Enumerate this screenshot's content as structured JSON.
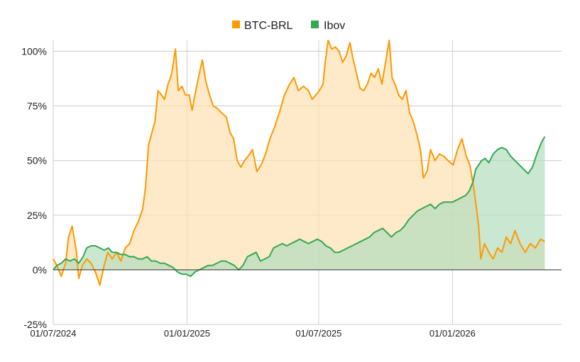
{
  "chart_data": {
    "type": "area",
    "x_axis": {
      "type": "date",
      "range": [
        "2024-07-01",
        "2026-05-31"
      ],
      "tick_labels": [
        "01/07/2024",
        "01/01/2025",
        "01/07/2025",
        "01/01/2026"
      ],
      "tick_dates": [
        "2024-07-01",
        "2025-01-01",
        "2025-07-01",
        "2026-01-01"
      ]
    },
    "y_axis": {
      "unit": "percent",
      "ylim": [
        -25,
        105
      ],
      "ticks": [
        -25,
        0,
        25,
        50,
        75,
        100
      ],
      "tick_labels": [
        "-25%",
        "0%",
        "25%",
        "50%",
        "75%",
        "100%"
      ]
    },
    "grid": true,
    "legend": "top-center",
    "series": [
      {
        "name": "BTC-BRL",
        "color": "#ff9900",
        "fill": "#fddfb0",
        "points": [
          [
            "2024-07-01",
            5
          ],
          [
            "2024-07-06",
            2
          ],
          [
            "2024-07-12",
            -3
          ],
          [
            "2024-07-18",
            3
          ],
          [
            "2024-07-22",
            15
          ],
          [
            "2024-07-27",
            20
          ],
          [
            "2024-08-02",
            8
          ],
          [
            "2024-08-05",
            -4
          ],
          [
            "2024-08-10",
            2
          ],
          [
            "2024-08-16",
            5
          ],
          [
            "2024-08-22",
            3
          ],
          [
            "2024-08-28",
            -1
          ],
          [
            "2024-09-03",
            -7
          ],
          [
            "2024-09-09",
            2
          ],
          [
            "2024-09-14",
            8
          ],
          [
            "2024-09-20",
            5
          ],
          [
            "2024-09-26",
            8
          ],
          [
            "2024-10-02",
            4
          ],
          [
            "2024-10-08",
            10
          ],
          [
            "2024-10-14",
            12
          ],
          [
            "2024-10-20",
            18
          ],
          [
            "2024-10-26",
            22
          ],
          [
            "2024-11-01",
            28
          ],
          [
            "2024-11-05",
            38
          ],
          [
            "2024-11-09",
            57
          ],
          [
            "2024-11-13",
            62
          ],
          [
            "2024-11-18",
            68
          ],
          [
            "2024-11-22",
            82
          ],
          [
            "2024-11-27",
            80
          ],
          [
            "2024-12-01",
            78
          ],
          [
            "2024-12-06",
            85
          ],
          [
            "2024-12-11",
            90
          ],
          [
            "2024-12-16",
            101
          ],
          [
            "2024-12-20",
            82
          ],
          [
            "2024-12-25",
            84
          ],
          [
            "2024-12-30",
            80
          ],
          [
            "2025-01-04",
            80
          ],
          [
            "2025-01-08",
            73
          ],
          [
            "2025-01-13",
            82
          ],
          [
            "2025-01-18",
            90
          ],
          [
            "2025-01-22",
            96
          ],
          [
            "2025-01-27",
            86
          ],
          [
            "2025-02-01",
            80
          ],
          [
            "2025-02-06",
            75
          ],
          [
            "2025-02-11",
            74
          ],
          [
            "2025-02-17",
            72
          ],
          [
            "2025-02-24",
            70
          ],
          [
            "2025-03-01",
            63
          ],
          [
            "2025-03-06",
            60
          ],
          [
            "2025-03-11",
            50
          ],
          [
            "2025-03-16",
            47
          ],
          [
            "2025-03-21",
            50
          ],
          [
            "2025-03-26",
            52
          ],
          [
            "2025-04-01",
            55
          ],
          [
            "2025-04-07",
            45
          ],
          [
            "2025-04-13",
            48
          ],
          [
            "2025-04-19",
            53
          ],
          [
            "2025-04-25",
            60
          ],
          [
            "2025-05-01",
            65
          ],
          [
            "2025-05-08",
            72
          ],
          [
            "2025-05-15",
            80
          ],
          [
            "2025-05-22",
            85
          ],
          [
            "2025-05-28",
            88
          ],
          [
            "2025-06-03",
            82
          ],
          [
            "2025-06-10",
            84
          ],
          [
            "2025-06-17",
            82
          ],
          [
            "2025-06-22",
            78
          ],
          [
            "2025-06-27",
            80
          ],
          [
            "2025-07-02",
            82
          ],
          [
            "2025-07-07",
            85
          ],
          [
            "2025-07-10",
            95
          ],
          [
            "2025-07-14",
            105
          ],
          [
            "2025-07-19",
            101
          ],
          [
            "2025-07-24",
            102
          ],
          [
            "2025-07-29",
            100
          ],
          [
            "2025-08-03",
            95
          ],
          [
            "2025-08-08",
            98
          ],
          [
            "2025-08-13",
            104
          ],
          [
            "2025-08-17",
            97
          ],
          [
            "2025-08-22",
            90
          ],
          [
            "2025-08-27",
            83
          ],
          [
            "2025-09-01",
            82
          ],
          [
            "2025-09-06",
            85
          ],
          [
            "2025-09-11",
            90
          ],
          [
            "2025-09-16",
            88
          ],
          [
            "2025-09-21",
            92
          ],
          [
            "2025-09-26",
            85
          ],
          [
            "2025-10-01",
            95
          ],
          [
            "2025-10-06",
            105
          ],
          [
            "2025-10-10",
            88
          ],
          [
            "2025-10-14",
            85
          ],
          [
            "2025-10-19",
            80
          ],
          [
            "2025-10-24",
            78
          ],
          [
            "2025-10-29",
            82
          ],
          [
            "2025-11-03",
            72
          ],
          [
            "2025-11-08",
            68
          ],
          [
            "2025-11-13",
            62
          ],
          [
            "2025-11-18",
            55
          ],
          [
            "2025-11-22",
            42
          ],
          [
            "2025-11-27",
            45
          ],
          [
            "2025-12-02",
            55
          ],
          [
            "2025-12-08",
            50
          ],
          [
            "2025-12-14",
            53
          ],
          [
            "2025-12-20",
            52
          ],
          [
            "2025-12-26",
            50
          ],
          [
            "2026-01-02",
            48
          ],
          [
            "2026-01-08",
            55
          ],
          [
            "2026-01-14",
            60
          ],
          [
            "2026-01-20",
            52
          ],
          [
            "2026-01-25",
            48
          ],
          [
            "2026-01-30",
            38
          ],
          [
            "2026-02-03",
            28
          ],
          [
            "2026-02-06",
            20
          ],
          [
            "2026-02-09",
            5
          ],
          [
            "2026-02-14",
            12
          ],
          [
            "2026-02-20",
            8
          ],
          [
            "2026-02-26",
            5
          ],
          [
            "2026-03-04",
            10
          ],
          [
            "2026-03-10",
            8
          ],
          [
            "2026-03-16",
            15
          ],
          [
            "2026-03-22",
            12
          ],
          [
            "2026-03-28",
            18
          ],
          [
            "2026-04-04",
            12
          ],
          [
            "2026-04-11",
            8
          ],
          [
            "2026-04-18",
            12
          ],
          [
            "2026-04-25",
            10
          ],
          [
            "2026-05-02",
            14
          ],
          [
            "2026-05-08",
            13
          ]
        ]
      },
      {
        "name": "Ibov",
        "color": "#34a853",
        "fill": "#b4ddbe",
        "points": [
          [
            "2024-07-01",
            0
          ],
          [
            "2024-07-06",
            2
          ],
          [
            "2024-07-12",
            3
          ],
          [
            "2024-07-18",
            5
          ],
          [
            "2024-07-24",
            4
          ],
          [
            "2024-07-30",
            5
          ],
          [
            "2024-08-05",
            3
          ],
          [
            "2024-08-11",
            6
          ],
          [
            "2024-08-16",
            10
          ],
          [
            "2024-08-22",
            11
          ],
          [
            "2024-08-28",
            11
          ],
          [
            "2024-09-03",
            10
          ],
          [
            "2024-09-09",
            9
          ],
          [
            "2024-09-15",
            10
          ],
          [
            "2024-09-20",
            8
          ],
          [
            "2024-09-26",
            8
          ],
          [
            "2024-10-02",
            7
          ],
          [
            "2024-10-08",
            7
          ],
          [
            "2024-10-14",
            6
          ],
          [
            "2024-10-20",
            6
          ],
          [
            "2024-10-26",
            5
          ],
          [
            "2024-11-01",
            5
          ],
          [
            "2024-11-07",
            6
          ],
          [
            "2024-11-13",
            4
          ],
          [
            "2024-11-19",
            4
          ],
          [
            "2024-11-25",
            3
          ],
          [
            "2024-12-01",
            3
          ],
          [
            "2024-12-07",
            2
          ],
          [
            "2024-12-13",
            1
          ],
          [
            "2024-12-19",
            -1
          ],
          [
            "2024-12-25",
            -2
          ],
          [
            "2024-12-31",
            -2
          ],
          [
            "2025-01-06",
            -3
          ],
          [
            "2025-01-12",
            -1
          ],
          [
            "2025-01-18",
            0
          ],
          [
            "2025-01-24",
            1
          ],
          [
            "2025-01-30",
            2
          ],
          [
            "2025-02-05",
            2
          ],
          [
            "2025-02-11",
            3
          ],
          [
            "2025-02-17",
            4
          ],
          [
            "2025-02-23",
            4
          ],
          [
            "2025-03-01",
            3
          ],
          [
            "2025-03-07",
            2
          ],
          [
            "2025-03-13",
            0
          ],
          [
            "2025-03-19",
            2
          ],
          [
            "2025-03-25",
            6
          ],
          [
            "2025-03-31",
            7
          ],
          [
            "2025-04-06",
            8
          ],
          [
            "2025-04-12",
            4
          ],
          [
            "2025-04-18",
            5
          ],
          [
            "2025-04-24",
            6
          ],
          [
            "2025-04-30",
            10
          ],
          [
            "2025-05-06",
            11
          ],
          [
            "2025-05-12",
            12
          ],
          [
            "2025-05-18",
            11
          ],
          [
            "2025-05-24",
            12
          ],
          [
            "2025-05-30",
            13
          ],
          [
            "2025-06-05",
            14
          ],
          [
            "2025-06-11",
            13
          ],
          [
            "2025-06-17",
            12
          ],
          [
            "2025-06-23",
            13
          ],
          [
            "2025-06-29",
            14
          ],
          [
            "2025-07-05",
            13
          ],
          [
            "2025-07-11",
            11
          ],
          [
            "2025-07-17",
            10
          ],
          [
            "2025-07-23",
            8
          ],
          [
            "2025-07-29",
            8
          ],
          [
            "2025-08-04",
            9
          ],
          [
            "2025-08-10",
            10
          ],
          [
            "2025-08-16",
            11
          ],
          [
            "2025-08-22",
            12
          ],
          [
            "2025-08-28",
            13
          ],
          [
            "2025-09-03",
            14
          ],
          [
            "2025-09-09",
            15
          ],
          [
            "2025-09-15",
            17
          ],
          [
            "2025-09-21",
            18
          ],
          [
            "2025-09-27",
            19
          ],
          [
            "2025-10-03",
            17
          ],
          [
            "2025-10-09",
            15
          ],
          [
            "2025-10-15",
            17
          ],
          [
            "2025-10-21",
            18
          ],
          [
            "2025-10-27",
            20
          ],
          [
            "2025-11-02",
            23
          ],
          [
            "2025-11-08",
            25
          ],
          [
            "2025-11-14",
            27
          ],
          [
            "2025-11-20",
            28
          ],
          [
            "2025-11-26",
            29
          ],
          [
            "2025-12-02",
            30
          ],
          [
            "2025-12-08",
            28
          ],
          [
            "2025-12-14",
            30
          ],
          [
            "2025-12-20",
            31
          ],
          [
            "2025-12-26",
            31
          ],
          [
            "2026-01-01",
            31
          ],
          [
            "2026-01-07",
            32
          ],
          [
            "2026-01-13",
            33
          ],
          [
            "2026-01-19",
            34
          ],
          [
            "2026-01-24",
            36
          ],
          [
            "2026-01-29",
            40
          ],
          [
            "2026-02-02",
            46
          ],
          [
            "2026-02-06",
            48
          ],
          [
            "2026-02-10",
            50
          ],
          [
            "2026-02-15",
            51
          ],
          [
            "2026-02-20",
            49
          ],
          [
            "2026-02-26",
            53
          ],
          [
            "2026-03-04",
            55
          ],
          [
            "2026-03-10",
            56
          ],
          [
            "2026-03-16",
            55
          ],
          [
            "2026-03-22",
            52
          ],
          [
            "2026-03-28",
            50
          ],
          [
            "2026-04-03",
            48
          ],
          [
            "2026-04-09",
            46
          ],
          [
            "2026-04-15",
            44
          ],
          [
            "2026-04-21",
            47
          ],
          [
            "2026-04-27",
            53
          ],
          [
            "2026-05-03",
            58
          ],
          [
            "2026-05-08",
            61
          ]
        ]
      }
    ]
  }
}
